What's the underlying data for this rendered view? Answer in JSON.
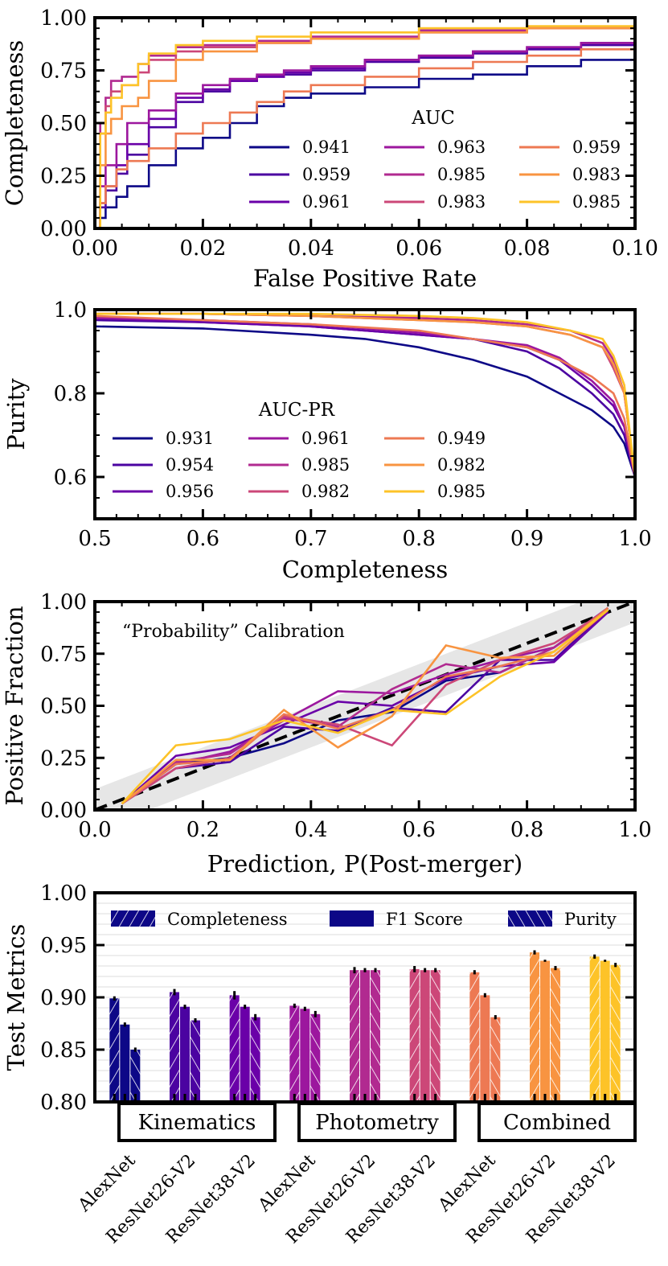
{
  "palette": [
    "#0d0887",
    "#4b03a1",
    "#6a00a8",
    "#9c179e",
    "#b12a90",
    "#cc4778",
    "#e16462",
    "#ed7953",
    "#f89441",
    "#fdc328"
  ],
  "chart_data": [
    {
      "type": "line",
      "id": "roc",
      "xlabel": "False Positive Rate",
      "ylabel": "Completeness",
      "xlim": [
        0,
        0.1
      ],
      "ylim": [
        0,
        1
      ],
      "xticks": [
        0,
        0.02,
        0.04,
        0.06,
        0.08,
        0.1
      ],
      "xtick_labels": [
        "0.00",
        "0.02",
        "0.04",
        "0.06",
        "0.08",
        "0.10"
      ],
      "yticks": [
        0,
        0.25,
        0.5,
        0.75,
        1
      ],
      "ytick_labels": [
        "0.00",
        "0.25",
        "0.50",
        "0.75",
        "1.00"
      ],
      "legend_title": "AUC",
      "series": [
        {
          "name": "0.941",
          "color_index": 0,
          "x": [
            0,
            0.001,
            0.002,
            0.004,
            0.006,
            0.01,
            0.015,
            0.02,
            0.025,
            0.03,
            0.035,
            0.04,
            0.05,
            0.06,
            0.07,
            0.08,
            0.09,
            0.1
          ],
          "y": [
            0,
            0.05,
            0.1,
            0.15,
            0.2,
            0.3,
            0.38,
            0.43,
            0.5,
            0.58,
            0.62,
            0.64,
            0.67,
            0.71,
            0.73,
            0.77,
            0.8,
            0.83
          ]
        },
        {
          "name": "0.959",
          "color_index": 1,
          "x": [
            0,
            0.001,
            0.002,
            0.004,
            0.006,
            0.01,
            0.015,
            0.02,
            0.025,
            0.03,
            0.035,
            0.04,
            0.05,
            0.06,
            0.07,
            0.08,
            0.09,
            0.1
          ],
          "y": [
            0,
            0.1,
            0.18,
            0.26,
            0.35,
            0.48,
            0.6,
            0.65,
            0.7,
            0.72,
            0.73,
            0.75,
            0.79,
            0.81,
            0.83,
            0.85,
            0.87,
            0.89
          ]
        },
        {
          "name": "0.961",
          "color_index": 2,
          "x": [
            0,
            0.001,
            0.002,
            0.004,
            0.006,
            0.01,
            0.015,
            0.02,
            0.025,
            0.03,
            0.035,
            0.04,
            0.05,
            0.06,
            0.07,
            0.08,
            0.09,
            0.1
          ],
          "y": [
            0,
            0.12,
            0.2,
            0.3,
            0.4,
            0.52,
            0.62,
            0.66,
            0.7,
            0.72,
            0.74,
            0.76,
            0.8,
            0.82,
            0.84,
            0.86,
            0.88,
            0.9
          ]
        },
        {
          "name": "0.963",
          "color_index": 3,
          "x": [
            0,
            0.001,
            0.002,
            0.004,
            0.006,
            0.01,
            0.015,
            0.02,
            0.025,
            0.03,
            0.035,
            0.04,
            0.05,
            0.06,
            0.07,
            0.08,
            0.09,
            0.1
          ],
          "y": [
            0,
            0.2,
            0.3,
            0.4,
            0.5,
            0.56,
            0.64,
            0.68,
            0.71,
            0.73,
            0.75,
            0.77,
            0.8,
            0.82,
            0.84,
            0.86,
            0.88,
            0.9
          ]
        },
        {
          "name": "0.985",
          "color_index": 4,
          "x": [
            0,
            0.001,
            0.002,
            0.003,
            0.005,
            0.008,
            0.01,
            0.015,
            0.02,
            0.03,
            0.04,
            0.06,
            0.08,
            0.1
          ],
          "y": [
            0,
            0.5,
            0.62,
            0.7,
            0.72,
            0.78,
            0.82,
            0.86,
            0.87,
            0.89,
            0.91,
            0.94,
            0.95,
            0.96
          ]
        },
        {
          "name": "0.983",
          "color_index": 5,
          "x": [
            0,
            0.001,
            0.002,
            0.003,
            0.005,
            0.008,
            0.01,
            0.015,
            0.02,
            0.03,
            0.04,
            0.06,
            0.08,
            0.1
          ],
          "y": [
            0,
            0.45,
            0.58,
            0.65,
            0.68,
            0.74,
            0.8,
            0.84,
            0.86,
            0.88,
            0.9,
            0.93,
            0.95,
            0.96
          ]
        },
        {
          "name": "0.959",
          "color_index": 7,
          "x": [
            0,
            0.001,
            0.002,
            0.004,
            0.006,
            0.01,
            0.015,
            0.02,
            0.025,
            0.03,
            0.035,
            0.04,
            0.05,
            0.06,
            0.07,
            0.08,
            0.09,
            0.1
          ],
          "y": [
            0,
            0.12,
            0.2,
            0.28,
            0.32,
            0.38,
            0.45,
            0.5,
            0.55,
            0.6,
            0.65,
            0.68,
            0.72,
            0.76,
            0.79,
            0.82,
            0.85,
            0.88
          ]
        },
        {
          "name": "0.983",
          "color_index": 8,
          "x": [
            0,
            0.001,
            0.002,
            0.003,
            0.005,
            0.008,
            0.01,
            0.015,
            0.02,
            0.03,
            0.04,
            0.06,
            0.08,
            0.1
          ],
          "y": [
            0,
            0.3,
            0.45,
            0.52,
            0.58,
            0.62,
            0.7,
            0.8,
            0.84,
            0.88,
            0.9,
            0.93,
            0.95,
            0.96
          ]
        },
        {
          "name": "0.985",
          "color_index": 9,
          "x": [
            0,
            0.001,
            0.002,
            0.003,
            0.005,
            0.008,
            0.01,
            0.015,
            0.02,
            0.03,
            0.04,
            0.06,
            0.08,
            0.1
          ],
          "y": [
            0,
            0.45,
            0.55,
            0.62,
            0.68,
            0.78,
            0.83,
            0.87,
            0.89,
            0.91,
            0.93,
            0.95,
            0.96,
            0.97
          ]
        }
      ]
    },
    {
      "type": "line",
      "id": "pr",
      "xlabel": "Completeness",
      "ylabel": "Purity",
      "xlim": [
        0.5,
        1.0
      ],
      "ylim": [
        0.5,
        1.0
      ],
      "xticks": [
        0.5,
        0.6,
        0.7,
        0.8,
        0.9,
        1.0
      ],
      "xtick_labels": [
        "0.5",
        "0.6",
        "0.7",
        "0.8",
        "0.9",
        "1.0"
      ],
      "yticks": [
        0.6,
        0.8,
        1.0
      ],
      "ytick_labels": [
        "0.6",
        "0.8",
        "1.0"
      ],
      "legend_title": "AUC-PR",
      "series": [
        {
          "name": "0.931",
          "color_index": 0,
          "x": [
            0.5,
            0.6,
            0.7,
            0.75,
            0.8,
            0.85,
            0.9,
            0.93,
            0.96,
            0.98,
            0.99,
            1.0
          ],
          "y": [
            0.96,
            0.955,
            0.94,
            0.93,
            0.91,
            0.88,
            0.84,
            0.8,
            0.76,
            0.72,
            0.68,
            0.6
          ]
        },
        {
          "name": "0.954",
          "color_index": 1,
          "x": [
            0.5,
            0.6,
            0.7,
            0.8,
            0.85,
            0.9,
            0.93,
            0.96,
            0.98,
            0.99,
            1.0
          ],
          "y": [
            0.975,
            0.97,
            0.96,
            0.94,
            0.93,
            0.9,
            0.86,
            0.8,
            0.75,
            0.7,
            0.6
          ]
        },
        {
          "name": "0.956",
          "color_index": 2,
          "x": [
            0.5,
            0.6,
            0.7,
            0.8,
            0.85,
            0.9,
            0.93,
            0.96,
            0.98,
            0.99,
            1.0
          ],
          "y": [
            0.98,
            0.97,
            0.96,
            0.94,
            0.93,
            0.91,
            0.88,
            0.82,
            0.77,
            0.72,
            0.6
          ]
        },
        {
          "name": "0.961",
          "color_index": 3,
          "x": [
            0.5,
            0.6,
            0.7,
            0.8,
            0.85,
            0.9,
            0.93,
            0.96,
            0.98,
            0.99,
            1.0
          ],
          "y": [
            0.98,
            0.975,
            0.965,
            0.945,
            0.93,
            0.915,
            0.885,
            0.83,
            0.78,
            0.72,
            0.6
          ]
        },
        {
          "name": "0.985",
          "color_index": 4,
          "x": [
            0.5,
            0.6,
            0.7,
            0.8,
            0.85,
            0.9,
            0.94,
            0.97,
            0.98,
            0.99,
            1.0
          ],
          "y": [
            0.99,
            0.99,
            0.985,
            0.98,
            0.975,
            0.965,
            0.95,
            0.92,
            0.88,
            0.8,
            0.6
          ]
        },
        {
          "name": "0.982",
          "color_index": 5,
          "x": [
            0.5,
            0.6,
            0.7,
            0.8,
            0.85,
            0.9,
            0.94,
            0.97,
            0.98,
            0.99,
            1.0
          ],
          "y": [
            0.99,
            0.99,
            0.985,
            0.975,
            0.97,
            0.96,
            0.94,
            0.91,
            0.86,
            0.8,
            0.6
          ]
        },
        {
          "name": "0.949",
          "color_index": 7,
          "x": [
            0.5,
            0.6,
            0.7,
            0.8,
            0.85,
            0.9,
            0.93,
            0.96,
            0.98,
            0.99,
            1.0
          ],
          "y": [
            0.985,
            0.975,
            0.965,
            0.95,
            0.93,
            0.91,
            0.88,
            0.84,
            0.8,
            0.74,
            0.6
          ]
        },
        {
          "name": "0.982",
          "color_index": 8,
          "x": [
            0.5,
            0.6,
            0.7,
            0.8,
            0.85,
            0.9,
            0.94,
            0.97,
            0.98,
            0.99,
            1.0
          ],
          "y": [
            0.99,
            0.99,
            0.985,
            0.975,
            0.97,
            0.96,
            0.94,
            0.91,
            0.87,
            0.8,
            0.6
          ]
        },
        {
          "name": "0.985",
          "color_index": 9,
          "x": [
            0.5,
            0.6,
            0.7,
            0.8,
            0.85,
            0.9,
            0.94,
            0.97,
            0.98,
            0.99,
            1.0
          ],
          "y": [
            0.99,
            0.99,
            0.99,
            0.985,
            0.98,
            0.97,
            0.95,
            0.93,
            0.89,
            0.82,
            0.6
          ]
        }
      ]
    },
    {
      "type": "line",
      "id": "calibration",
      "xlabel": "Prediction, P(Post-merger)",
      "ylabel": "Positive Fraction",
      "annotation": "“Probability” Calibration",
      "xlim": [
        0,
        1
      ],
      "ylim": [
        0,
        1
      ],
      "xticks": [
        0,
        0.2,
        0.4,
        0.6,
        0.8,
        1.0
      ],
      "xtick_labels": [
        "0.0",
        "0.2",
        "0.4",
        "0.6",
        "0.8",
        "1.0"
      ],
      "yticks": [
        0,
        0.25,
        0.5,
        0.75,
        1
      ],
      "ytick_labels": [
        "0.00",
        "0.25",
        "0.50",
        "0.75",
        "1.00"
      ],
      "band_halfwidth": 0.1,
      "x": [
        0.05,
        0.15,
        0.25,
        0.35,
        0.45,
        0.55,
        0.65,
        0.75,
        0.85,
        0.95
      ],
      "series": [
        {
          "color_index": 0,
          "y": [
            0.03,
            0.22,
            0.25,
            0.32,
            0.43,
            0.47,
            0.62,
            0.66,
            0.78,
            0.97
          ]
        },
        {
          "color_index": 1,
          "y": [
            0.03,
            0.2,
            0.23,
            0.4,
            0.38,
            0.49,
            0.47,
            0.72,
            0.72,
            0.96
          ]
        },
        {
          "color_index": 2,
          "y": [
            0.03,
            0.26,
            0.3,
            0.41,
            0.52,
            0.5,
            0.63,
            0.69,
            0.71,
            0.95
          ]
        },
        {
          "color_index": 3,
          "y": [
            0.03,
            0.22,
            0.28,
            0.43,
            0.57,
            0.56,
            0.65,
            0.72,
            0.78,
            0.96
          ]
        },
        {
          "color_index": 4,
          "y": [
            0.03,
            0.23,
            0.27,
            0.44,
            0.4,
            0.58,
            0.7,
            0.66,
            0.78,
            0.97
          ]
        },
        {
          "color_index": 5,
          "y": [
            0.03,
            0.2,
            0.25,
            0.45,
            0.41,
            0.31,
            0.6,
            0.72,
            0.8,
            0.96
          ]
        },
        {
          "color_index": 7,
          "y": [
            0.03,
            0.22,
            0.24,
            0.46,
            0.39,
            0.48,
            0.64,
            0.69,
            0.76,
            0.97
          ]
        },
        {
          "color_index": 8,
          "y": [
            0.03,
            0.24,
            0.24,
            0.48,
            0.3,
            0.45,
            0.79,
            0.73,
            0.74,
            0.96
          ]
        },
        {
          "color_index": 9,
          "y": [
            0.03,
            0.31,
            0.34,
            0.43,
            0.37,
            0.48,
            0.46,
            0.64,
            0.76,
            0.96
          ]
        }
      ]
    },
    {
      "type": "bar",
      "id": "metrics",
      "ylabel": "Test Metrics",
      "ylim": [
        0.8,
        1.0
      ],
      "yticks": [
        0.8,
        0.85,
        0.9,
        0.95,
        1.0
      ],
      "ytick_labels": [
        "0.80",
        "0.85",
        "0.90",
        "0.95",
        "1.00"
      ],
      "legend": [
        {
          "name": "Completeness",
          "hatch": "forward"
        },
        {
          "name": "F1 Score",
          "hatch": "none"
        },
        {
          "name": "Purity",
          "hatch": "backward"
        }
      ],
      "groups": [
        "Kinematics",
        "Photometry",
        "Combined"
      ],
      "categories": [
        "AlexNet",
        "ResNet26-V2",
        "ResNet38-V2",
        "AlexNet",
        "ResNet26-V2",
        "ResNet38-V2",
        "AlexNet",
        "ResNet26-V2",
        "ResNet38-V2"
      ],
      "series": [
        {
          "name": "Completeness",
          "values": [
            0.899,
            0.905,
            0.902,
            0.892,
            0.926,
            0.927,
            0.924,
            0.943,
            0.939
          ],
          "errors": [
            0.002,
            0.003,
            0.004,
            0.002,
            0.003,
            0.003,
            0.002,
            0.002,
            0.002
          ]
        },
        {
          "name": "F1 Score",
          "values": [
            0.874,
            0.891,
            0.891,
            0.889,
            0.926,
            0.926,
            0.902,
            0.935,
            0.935
          ],
          "errors": [
            0.002,
            0.002,
            0.002,
            0.002,
            0.002,
            0.002,
            0.002,
            0.001,
            0.001
          ]
        },
        {
          "name": "Purity",
          "values": [
            0.85,
            0.878,
            0.881,
            0.884,
            0.926,
            0.926,
            0.881,
            0.928,
            0.931
          ],
          "errors": [
            0.002,
            0.002,
            0.003,
            0.003,
            0.002,
            0.002,
            0.002,
            0.002,
            0.002
          ]
        }
      ]
    }
  ]
}
